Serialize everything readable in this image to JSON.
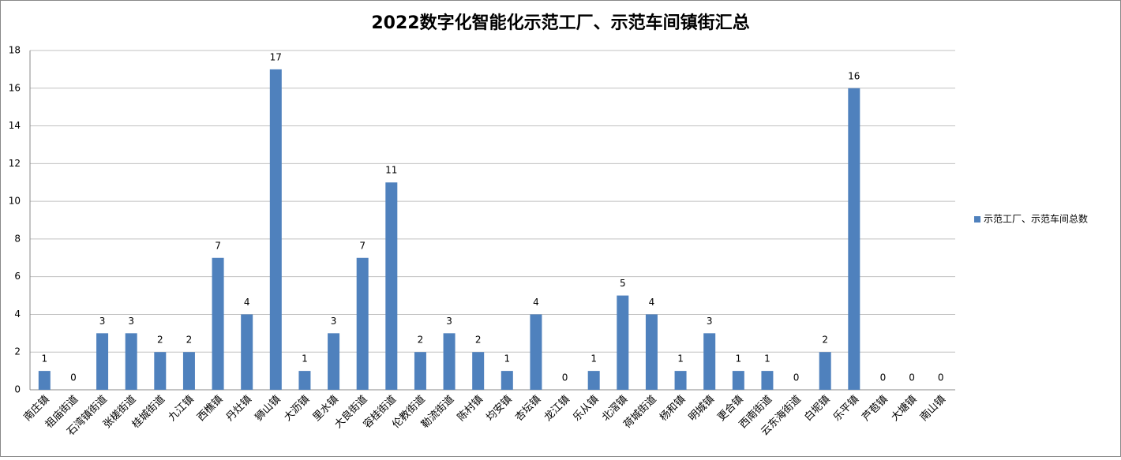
{
  "chart_data": {
    "type": "bar",
    "title": "2022数字化智能化示范工厂、示范车间镇街汇总",
    "categories": [
      "南庄镇",
      "祖庙街道",
      "石湾镇街道",
      "张槎街道",
      "桂城街道",
      "九江镇",
      "西樵镇",
      "丹灶镇",
      "狮山镇",
      "大沥镇",
      "里水镇",
      "大良街道",
      "容桂街道",
      "伦教街道",
      "勒流街道",
      "陈村镇",
      "均安镇",
      "杏坛镇",
      "龙江镇",
      "乐从镇",
      "北滘镇",
      "荷城街道",
      "杨和镇",
      "明城镇",
      "更合镇",
      "西南街道",
      "云东海街道",
      "白坭镇",
      "乐平镇",
      "芦苞镇",
      "大塘镇",
      "南山镇"
    ],
    "series": [
      {
        "name": "示范工厂、示范车间总数",
        "color": "#4f81bd",
        "values": [
          1,
          0,
          3,
          3,
          2,
          2,
          7,
          4,
          17,
          1,
          3,
          7,
          11,
          2,
          3,
          2,
          1,
          4,
          0,
          1,
          5,
          4,
          1,
          3,
          1,
          1,
          0,
          2,
          16,
          0,
          0,
          0
        ]
      }
    ],
    "ylim": [
      0,
      18
    ],
    "yticks": [
      0,
      2,
      4,
      6,
      8,
      10,
      12,
      14,
      16,
      18
    ],
    "grid": true,
    "legend": "right"
  }
}
